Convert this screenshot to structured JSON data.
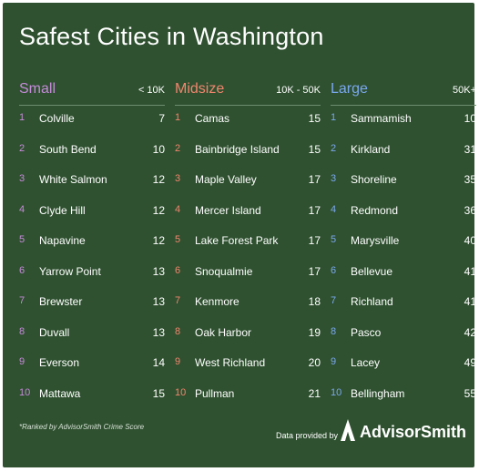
{
  "title": "Safest Cities in Washington",
  "columns": [
    {
      "name": "Small",
      "range": "< 10K",
      "color": "#c48ad8",
      "rows": [
        {
          "rank": "1",
          "city": "Colville",
          "score": "7"
        },
        {
          "rank": "2",
          "city": "South Bend",
          "score": "10"
        },
        {
          "rank": "3",
          "city": "White Salmon",
          "score": "12"
        },
        {
          "rank": "4",
          "city": "Clyde Hill",
          "score": "12"
        },
        {
          "rank": "5",
          "city": "Napavine",
          "score": "12"
        },
        {
          "rank": "6",
          "city": "Yarrow Point",
          "score": "13"
        },
        {
          "rank": "7",
          "city": "Brewster",
          "score": "13"
        },
        {
          "rank": "8",
          "city": "Duvall",
          "score": "13"
        },
        {
          "rank": "9",
          "city": "Everson",
          "score": "14"
        },
        {
          "rank": "10",
          "city": "Mattawa",
          "score": "15"
        }
      ]
    },
    {
      "name": "Midsize",
      "range": "10K - 50K",
      "color": "#f0866e",
      "rows": [
        {
          "rank": "1",
          "city": "Camas",
          "score": "15"
        },
        {
          "rank": "2",
          "city": "Bainbridge Island",
          "score": "15"
        },
        {
          "rank": "3",
          "city": "Maple Valley",
          "score": "17"
        },
        {
          "rank": "4",
          "city": "Mercer Island",
          "score": "17"
        },
        {
          "rank": "5",
          "city": "Lake Forest Park",
          "score": "17"
        },
        {
          "rank": "6",
          "city": "Snoqualmie",
          "score": "17"
        },
        {
          "rank": "7",
          "city": "Kenmore",
          "score": "18"
        },
        {
          "rank": "8",
          "city": "Oak Harbor",
          "score": "19"
        },
        {
          "rank": "9",
          "city": "West Richland",
          "score": "20"
        },
        {
          "rank": "10",
          "city": "Pullman",
          "score": "21"
        }
      ]
    },
    {
      "name": "Large",
      "range": "50K+",
      "color": "#7aa8ee",
      "rows": [
        {
          "rank": "1",
          "city": "Sammamish",
          "score": "10"
        },
        {
          "rank": "2",
          "city": "Kirkland",
          "score": "31"
        },
        {
          "rank": "3",
          "city": "Shoreline",
          "score": "35"
        },
        {
          "rank": "4",
          "city": "Redmond",
          "score": "36"
        },
        {
          "rank": "5",
          "city": "Marysville",
          "score": "40"
        },
        {
          "rank": "6",
          "city": "Bellevue",
          "score": "41"
        },
        {
          "rank": "7",
          "city": "Richland",
          "score": "41"
        },
        {
          "rank": "8",
          "city": "Pasco",
          "score": "42"
        },
        {
          "rank": "9",
          "city": "Lacey",
          "score": "49"
        },
        {
          "rank": "10",
          "city": "Bellingham",
          "score": "55"
        }
      ]
    }
  ],
  "footnote": "*Ranked by AdvisorSmith Crime Score",
  "provided_by": "Data provided by",
  "brand": "AdvisorSmith",
  "colors": {
    "background": "#2f5130",
    "text": "#ffffff"
  },
  "logo_icon": "advisorsmith-logo-icon"
}
